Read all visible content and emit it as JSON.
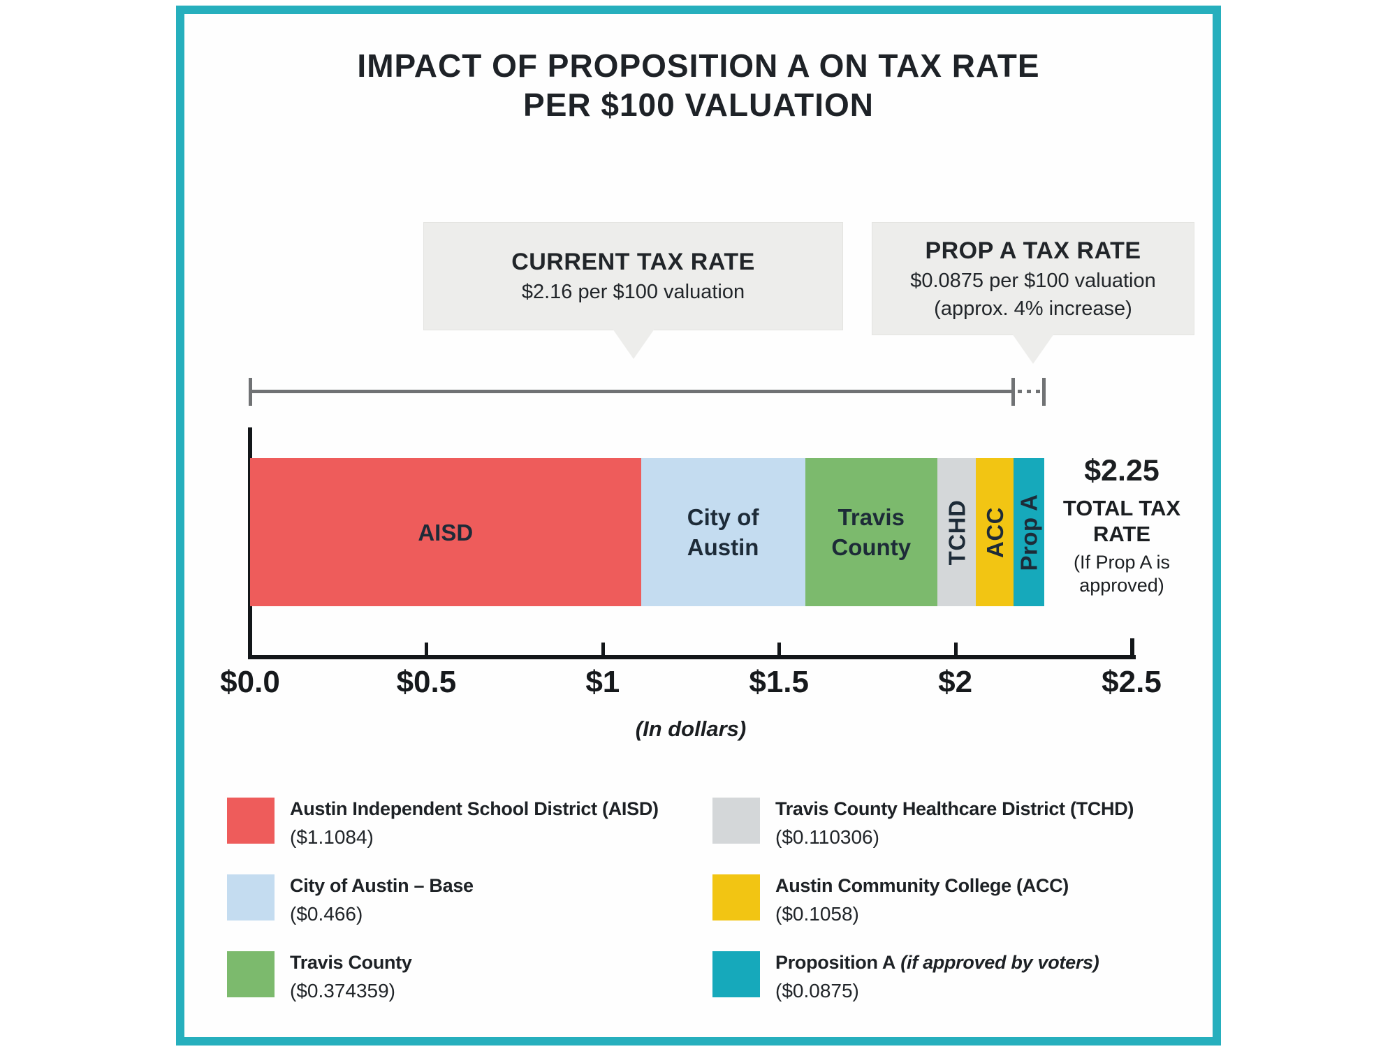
{
  "title": {
    "line1": "IMPACT OF PROPOSITION A ON TAX RATE",
    "line2": "PER $100 VALUATION"
  },
  "callouts": {
    "current": {
      "heading": "CURRENT TAX RATE",
      "detail": "$2.16 per $100 valuation"
    },
    "prop_a": {
      "heading": "PROP A TAX RATE",
      "detail": "$0.0875 per $100 valuation",
      "note": "(approx. 4% increase)"
    }
  },
  "total": {
    "amount": "$2.25",
    "label": "TOTAL TAX RATE",
    "note": "(If Prop A is approved)"
  },
  "chart_data": {
    "type": "bar",
    "orientation": "horizontal-stacked",
    "title": "IMPACT OF PROPOSITION A ON TAX RATE PER $100 VALUATION",
    "xlabel": "(In dollars)",
    "xlim": [
      0,
      2.5
    ],
    "x_ticks": [
      {
        "label": "$0.0",
        "value": 0
      },
      {
        "label": "$0.5",
        "value": 0.5
      },
      {
        "label": "$1",
        "value": 1
      },
      {
        "label": "$1.5",
        "value": 1.5
      },
      {
        "label": "$2",
        "value": 2
      },
      {
        "label": "$2.5",
        "value": 2.5
      }
    ],
    "current_total_rate": 2.16,
    "total_rate_if_approved": 2.25,
    "segments": [
      {
        "key": "aisd",
        "bar_label": [
          "AISD"
        ],
        "rotated": false,
        "value": 1.1084,
        "color": "#ee5c5b",
        "legend_label": "Austin Independent School District (AISD)",
        "legend_italic": "",
        "legend_value": "($1.1084)"
      },
      {
        "key": "city-of-austin",
        "bar_label": [
          "City of",
          "Austin"
        ],
        "rotated": false,
        "value": 0.466,
        "color": "#c4dcf0",
        "legend_label": "City of Austin – Base",
        "legend_italic": "",
        "legend_value": "($0.466)"
      },
      {
        "key": "travis-county",
        "bar_label": [
          "Travis",
          "County"
        ],
        "rotated": false,
        "value": 0.374359,
        "color": "#7cba6d",
        "legend_label": "Travis County",
        "legend_italic": "",
        "legend_value": "($0.374359)"
      },
      {
        "key": "tchd",
        "bar_label": [
          "TCHD"
        ],
        "rotated": true,
        "value": 0.110306,
        "color": "#d4d7d9",
        "legend_label": "Travis County Healthcare District (TCHD)",
        "legend_italic": "",
        "legend_value": "($0.110306)"
      },
      {
        "key": "acc",
        "bar_label": [
          "ACC"
        ],
        "rotated": true,
        "value": 0.1058,
        "color": "#f2c513",
        "legend_label": "Austin Community College (ACC)",
        "legend_italic": "",
        "legend_value": "($0.1058)"
      },
      {
        "key": "prop-a",
        "bar_label": [
          "Prop A"
        ],
        "rotated": true,
        "value": 0.0875,
        "color": "#16a9bb",
        "legend_label": "Proposition A",
        "legend_italic": "(if approved by voters)",
        "legend_value": "($0.0875)"
      }
    ]
  },
  "colors": {
    "card_border": "#26afbd",
    "callout_bg": "#ededeb",
    "bracket": "#707274",
    "axis": "#131619",
    "title_text": "#1e2227"
  }
}
